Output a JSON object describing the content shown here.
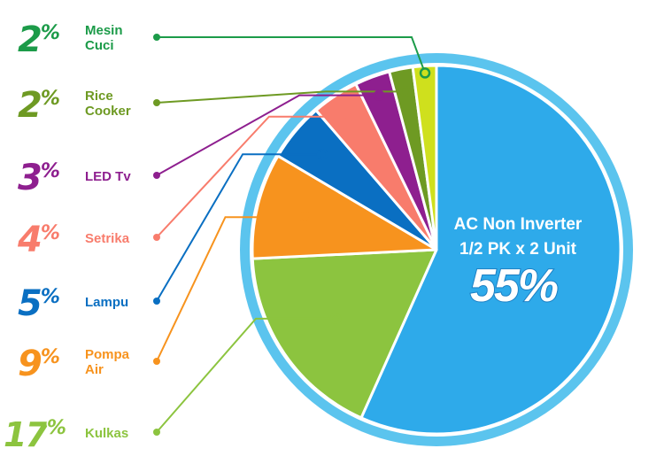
{
  "chart_data": {
    "type": "pie",
    "title": "",
    "slices": [
      {
        "label": "AC Non Inverter 1/2 PK x 2 Unit",
        "value": 55,
        "display": "55%",
        "color": "#2eaaea"
      },
      {
        "label": "Kulkas",
        "value": 17,
        "display": "17%",
        "color": "#8cc43f"
      },
      {
        "label": "Pompa Air",
        "value": 9,
        "display": "9%",
        "color": "#f7931e"
      },
      {
        "label": "Lampu",
        "value": 5,
        "display": "5%",
        "color": "#0a6fc2"
      },
      {
        "label": "Setrika",
        "value": 4,
        "display": "4%",
        "color": "#f87c6c"
      },
      {
        "label": "LED Tv",
        "value": 3,
        "display": "3%",
        "color": "#8e1f8f"
      },
      {
        "label": "Rice Cooker",
        "value": 2,
        "display": "2%",
        "color": "#6e9a23"
      },
      {
        "label": "Mesin Cuci",
        "value": 2,
        "display": "2%",
        "color": "#cfe01d"
      }
    ],
    "legend_colors": {
      "Mesin Cuci": "#1c9b49",
      "Rice Cooker": "#6e9a23",
      "LED Tv": "#8e1f8f",
      "Setrika": "#f87c6c",
      "Lampu": "#0a6fc2",
      "Pompa Air": "#f7931e",
      "Kulkas": "#8cc43f"
    },
    "center_label": {
      "line1": "AC Non Inverter",
      "line2": "1/2 PK x 2 Unit",
      "value": "55%"
    },
    "ring_color": "#5bc4ee"
  }
}
